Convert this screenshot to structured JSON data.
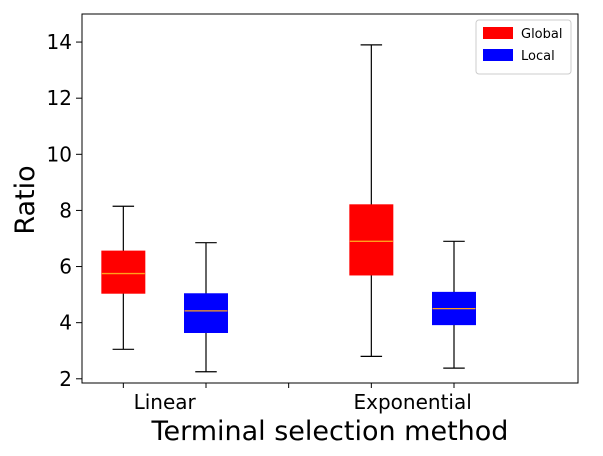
{
  "chart_data": {
    "type": "boxplot",
    "title": "",
    "xlabel": "Terminal selection method",
    "ylabel": "Ratio",
    "ylim": [
      1.85,
      15.0
    ],
    "yticks": [
      2,
      4,
      6,
      8,
      10,
      12,
      14
    ],
    "categories": [
      "Linear",
      "Exponential"
    ],
    "legend": {
      "position": "top-right"
    },
    "series": [
      {
        "name": "Global",
        "color": "#ff0000",
        "boxes": [
          {
            "category": "Linear",
            "whisker_low": 3.05,
            "q1": 5.05,
            "median": 5.75,
            "q3": 6.55,
            "whisker_high": 8.15
          },
          {
            "category": "Exponential",
            "whisker_low": 2.8,
            "q1": 5.7,
            "median": 6.9,
            "q3": 8.2,
            "whisker_high": 13.9
          }
        ]
      },
      {
        "name": "Local",
        "color": "#0000ff",
        "boxes": [
          {
            "category": "Linear",
            "whisker_low": 2.25,
            "q1": 3.65,
            "median": 4.42,
            "q3": 5.03,
            "whisker_high": 6.85
          },
          {
            "category": "Exponential",
            "whisker_low": 2.38,
            "q1": 3.93,
            "median": 4.5,
            "q3": 5.08,
            "whisker_high": 6.9
          }
        ]
      }
    ],
    "median_color": "#ff9f1c"
  }
}
